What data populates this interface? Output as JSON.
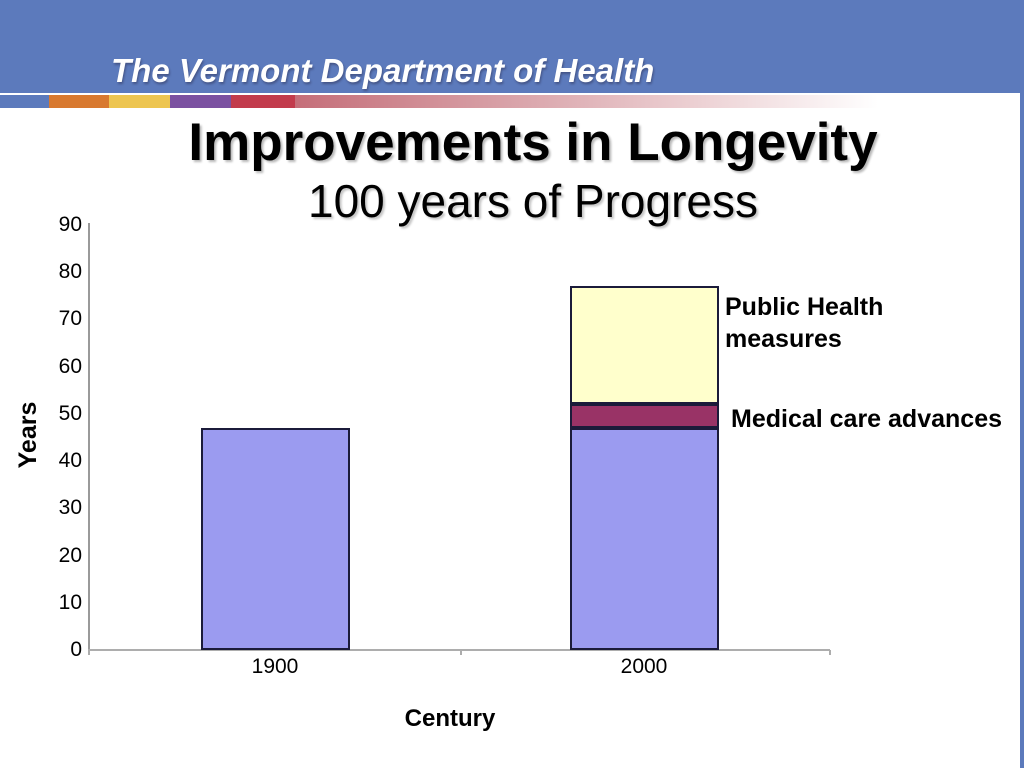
{
  "banner": {
    "title": "The Vermont Department of Health",
    "bg_color": "#5c7abc",
    "stripe_colors": [
      "#5c7abc",
      "#d8792f",
      "#edc550",
      "#7b51a1",
      "#c23b4c"
    ]
  },
  "slide": {
    "title": "Improvements in Longevity",
    "subtitle": "100 years of Progress"
  },
  "chart_data": {
    "type": "bar",
    "stacked": true,
    "categories": [
      "1900",
      "2000"
    ],
    "series": [
      {
        "name": "",
        "color": "#9b9bf0",
        "values": [
          47,
          47
        ]
      },
      {
        "name": "Medical care advances",
        "color": "#993366",
        "values": [
          0,
          5
        ]
      },
      {
        "name": "Public Health measures",
        "color": "#ffffcc",
        "values": [
          0,
          25
        ]
      }
    ],
    "xlabel": "Century",
    "ylabel": "Years",
    "ylim": [
      0,
      90
    ],
    "ytick_step": 10,
    "grid": false,
    "legend": false,
    "annotations": [
      {
        "text": "Public Health\nmeasures"
      },
      {
        "text": "Medical care advances"
      }
    ]
  }
}
